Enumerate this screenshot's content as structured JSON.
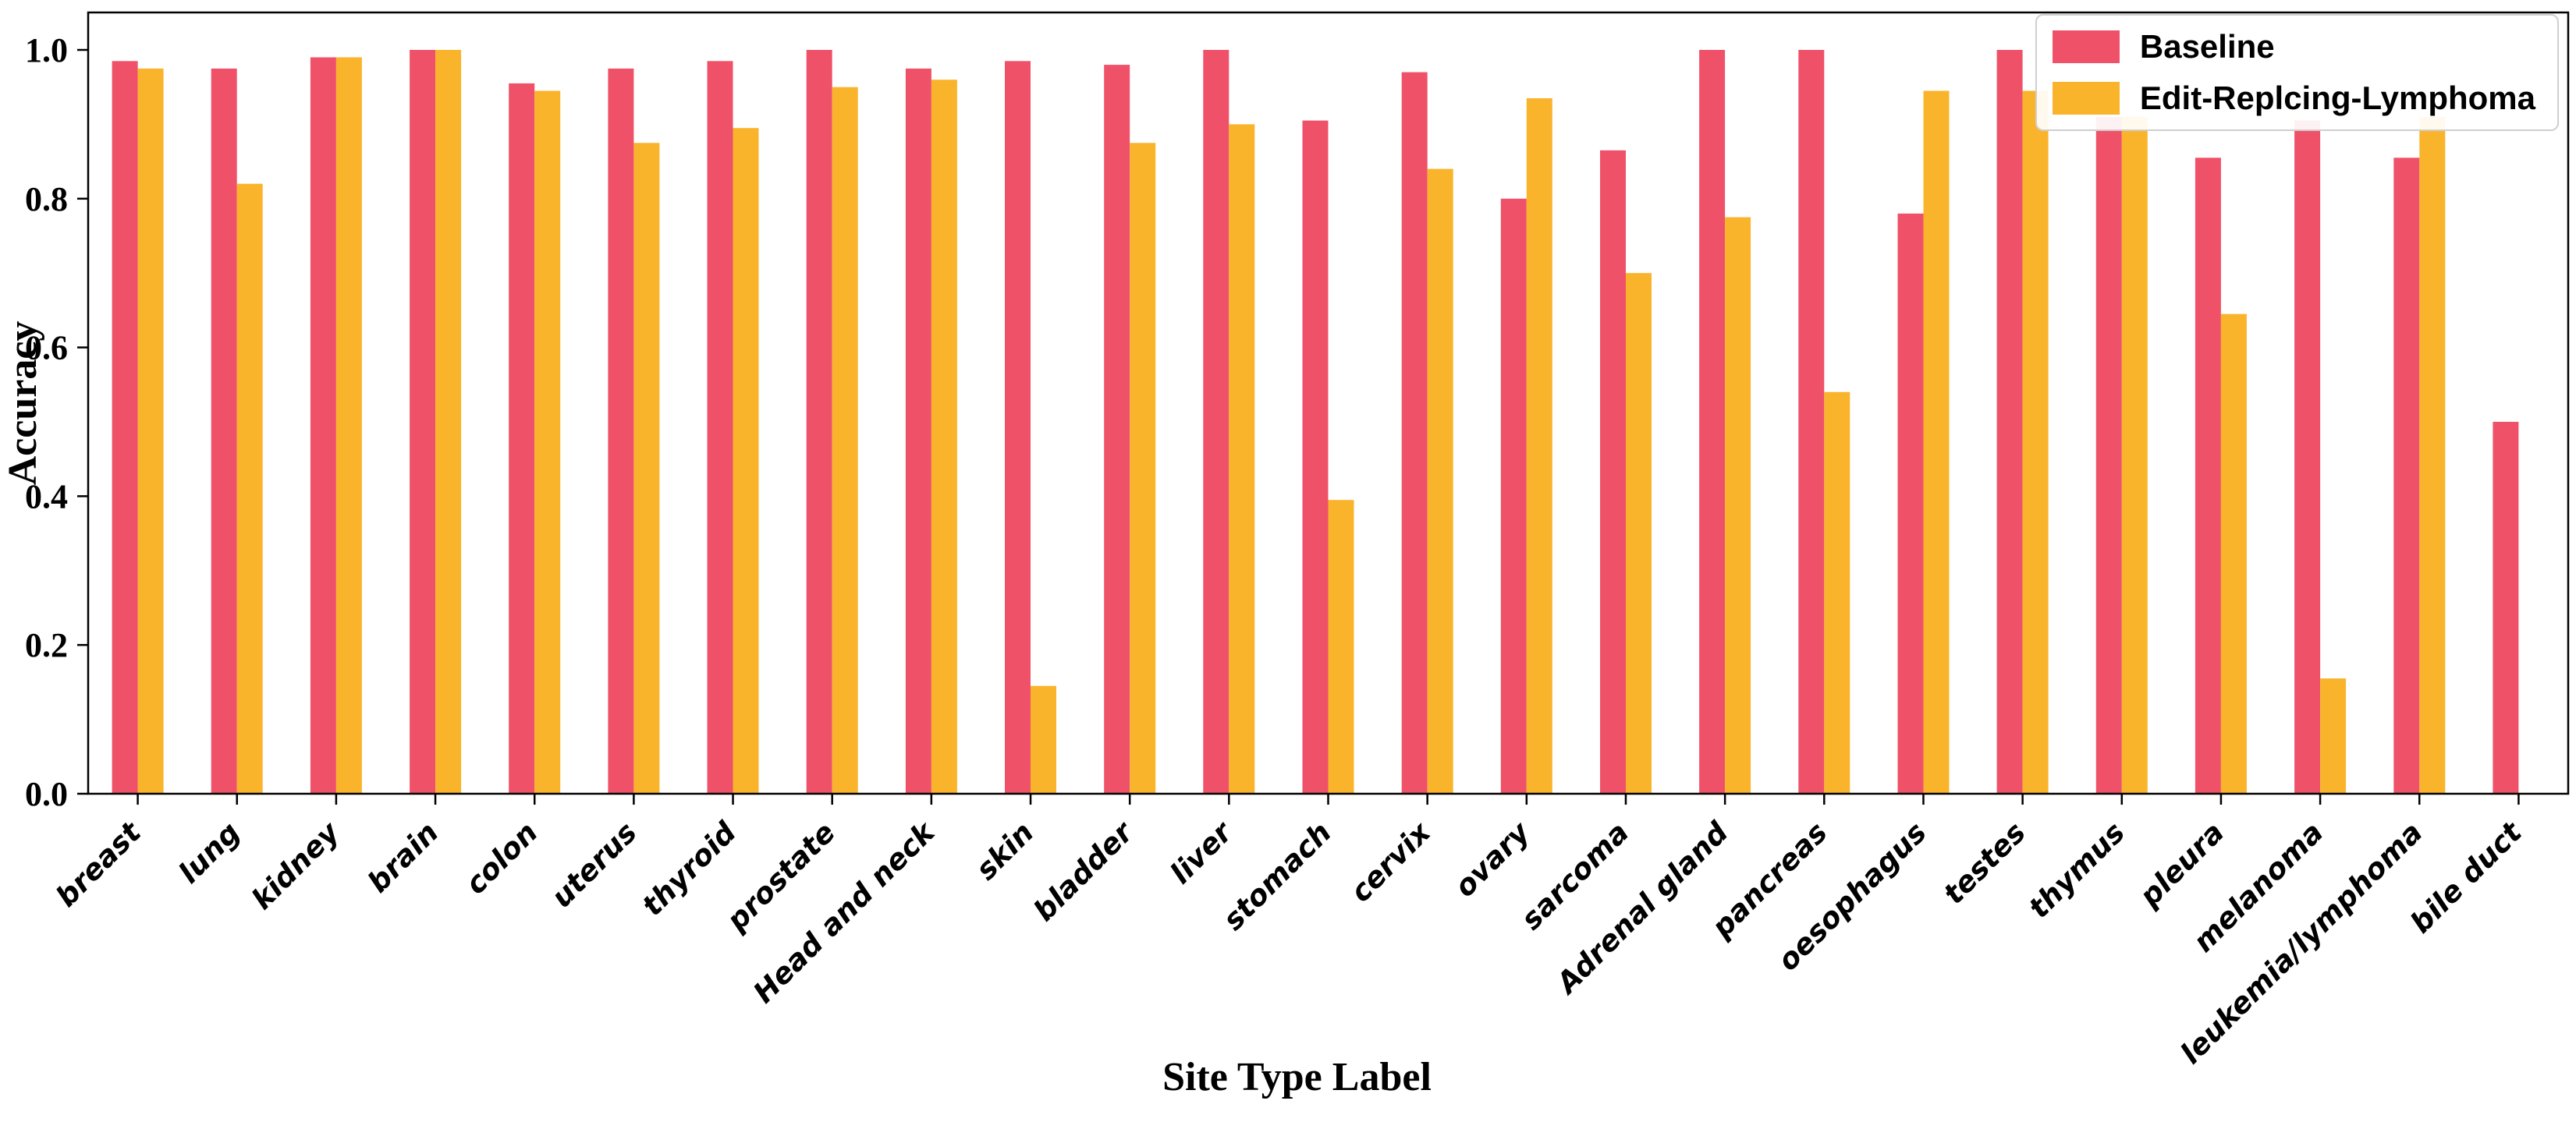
{
  "chart_data": {
    "type": "bar",
    "title": "",
    "xlabel": "Site Type Label",
    "ylabel": "Accuracy",
    "ylim": [
      0,
      1.05
    ],
    "yticks": [
      0.0,
      0.2,
      0.4,
      0.6,
      0.8,
      1.0
    ],
    "ytick_labels": [
      "0.0",
      "0.2",
      "0.4",
      "0.6",
      "0.8",
      "1.0"
    ],
    "grid": false,
    "legend_position": "upper right",
    "categories": [
      "breast",
      "lung",
      "kidney",
      "brain",
      "colon",
      "uterus",
      "thyroid",
      "prostate",
      "Head and neck",
      "skin",
      "bladder",
      "liver",
      "stomach",
      "cervix",
      "ovary",
      "sarcoma",
      "Adrenal gland",
      "pancreas",
      "oesophagus",
      "testes",
      "thymus",
      "pleura",
      "melanoma",
      "leukemia/lymphoma",
      "bile duct"
    ],
    "series": [
      {
        "name": "Baseline",
        "color": "#EF5268",
        "values": [
          0.985,
          0.975,
          0.99,
          1.0,
          0.955,
          0.975,
          0.985,
          1.0,
          0.975,
          0.985,
          0.98,
          1.0,
          0.905,
          0.97,
          0.8,
          0.865,
          1.0,
          1.0,
          0.78,
          1.0,
          0.91,
          0.855,
          0.905,
          0.855,
          0.5
        ]
      },
      {
        "name": "Edit-Replcing-Lymphoma",
        "color": "#F9B42C",
        "values": [
          0.975,
          0.82,
          0.99,
          1.0,
          0.945,
          0.875,
          0.895,
          0.95,
          0.96,
          0.145,
          0.875,
          0.9,
          0.395,
          0.84,
          0.935,
          0.7,
          0.775,
          0.54,
          0.945,
          0.945,
          0.91,
          0.645,
          0.155,
          0.91,
          0.0
        ]
      }
    ]
  },
  "colors": {
    "axis": "#000000",
    "background": "#ffffff",
    "legend_border": "#cfcfcf"
  }
}
